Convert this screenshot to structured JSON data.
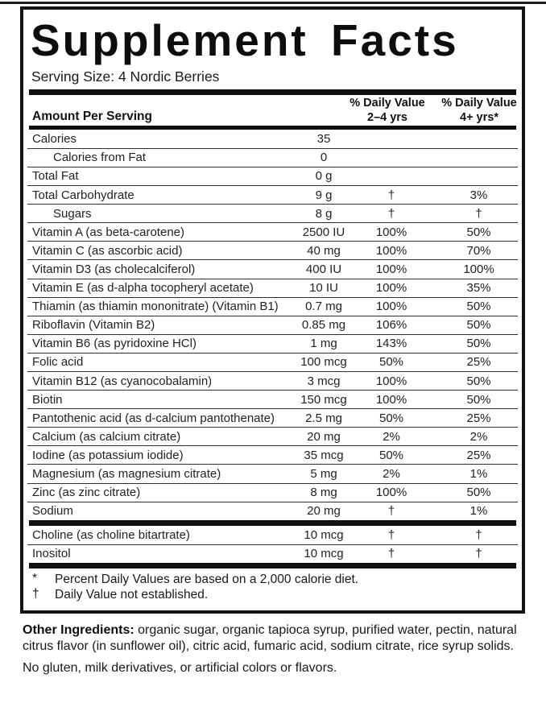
{
  "label": {
    "title": "Supplement Facts",
    "serving_size": "Serving Size: 4 Nordic Berries",
    "columns": {
      "amount_header": "Amount Per Serving",
      "dv1_line1": "% Daily Value",
      "dv1_line2": "2–4 yrs",
      "dv2_line1": "% Daily Value",
      "dv2_line2": "4+ yrs*"
    },
    "rows": [
      {
        "name": "Calories",
        "amount": "35",
        "dv1": "",
        "dv2": "",
        "indent": false
      },
      {
        "name": "Calories from Fat",
        "amount": "0",
        "dv1": "",
        "dv2": "",
        "indent": true
      },
      {
        "name": "Total Fat",
        "amount": "0 g",
        "dv1": "",
        "dv2": "",
        "indent": false
      },
      {
        "name": "Total Carbohydrate",
        "amount": "9 g",
        "dv1": "†",
        "dv2": "3%",
        "indent": false
      },
      {
        "name": "Sugars",
        "amount": "8 g",
        "dv1": "†",
        "dv2": "†",
        "indent": true
      },
      {
        "name": "Vitamin A (as beta-carotene)",
        "amount": "2500 IU",
        "dv1": "100%",
        "dv2": "50%",
        "indent": false
      },
      {
        "name": "Vitamin C (as ascorbic acid)",
        "amount": "40 mg",
        "dv1": "100%",
        "dv2": "70%",
        "indent": false
      },
      {
        "name": "Vitamin D3 (as cholecalciferol)",
        "amount": "400 IU",
        "dv1": "100%",
        "dv2": "100%",
        "indent": false
      },
      {
        "name": "Vitamin E (as d-alpha tocopheryl acetate)",
        "amount": "10 IU",
        "dv1": "100%",
        "dv2": "35%",
        "indent": false
      },
      {
        "name": "Thiamin (as thiamin mononitrate) (Vitamin B1)",
        "amount": "0.7 mg",
        "dv1": "100%",
        "dv2": "50%",
        "indent": false
      },
      {
        "name": "Riboflavin (Vitamin B2)",
        "amount": "0.85 mg",
        "dv1": "106%",
        "dv2": "50%",
        "indent": false
      },
      {
        "name": "Vitamin B6 (as pyridoxine HCl)",
        "amount": "1 mg",
        "dv1": "143%",
        "dv2": "50%",
        "indent": false
      },
      {
        "name": "Folic acid",
        "amount": "100 mcg",
        "dv1": "50%",
        "dv2": "25%",
        "indent": false
      },
      {
        "name": "Vitamin B12 (as cyanocobalamin)",
        "amount": "3 mcg",
        "dv1": "100%",
        "dv2": "50%",
        "indent": false
      },
      {
        "name": "Biotin",
        "amount": "150 mcg",
        "dv1": "100%",
        "dv2": "50%",
        "indent": false
      },
      {
        "name": "Pantothenic acid (as d-calcium pantothenate)",
        "amount": "2.5 mg",
        "dv1": "50%",
        "dv2": "25%",
        "indent": false
      },
      {
        "name": "Calcium (as calcium citrate)",
        "amount": "20 mg",
        "dv1": "2%",
        "dv2": "2%",
        "indent": false
      },
      {
        "name": "Iodine (as potassium iodide)",
        "amount": "35 mcg",
        "dv1": "50%",
        "dv2": "25%",
        "indent": false
      },
      {
        "name": "Magnesium (as magnesium citrate)",
        "amount": "5 mg",
        "dv1": "2%",
        "dv2": "1%",
        "indent": false
      },
      {
        "name": "Zinc (as zinc citrate)",
        "amount": "8 mg",
        "dv1": "100%",
        "dv2": "50%",
        "indent": false
      },
      {
        "name": "Sodium",
        "amount": "20 mg",
        "dv1": "†",
        "dv2": "1%",
        "indent": false
      }
    ],
    "rows_secondary": [
      {
        "name": "Choline (as choline bitartrate)",
        "amount": "10 mcg",
        "dv1": "†",
        "dv2": "†",
        "indent": false
      },
      {
        "name": "Inositol",
        "amount": "10 mcg",
        "dv1": "†",
        "dv2": "†",
        "indent": false
      }
    ],
    "footnotes": [
      {
        "symbol": "*",
        "text": "Percent Daily Values are based on a 2,000 calorie diet."
      },
      {
        "symbol": "†",
        "text": "Daily Value not established."
      }
    ]
  },
  "below": {
    "other_ingredients_label": "Other Ingredients:",
    "other_ingredients_text": " organic sugar, organic tapioca syrup, purified water, pectin, natural citrus flavor (in sunflower oil), citric acid, fumaric acid, sodium citrate, rice syrup solids.",
    "allergen_text": "No gluten, milk derivatives, or artificial colors or flavors."
  },
  "colors": {
    "text": "#1d1d1d",
    "rule": "#2e2e2e",
    "bar": "#101010"
  }
}
